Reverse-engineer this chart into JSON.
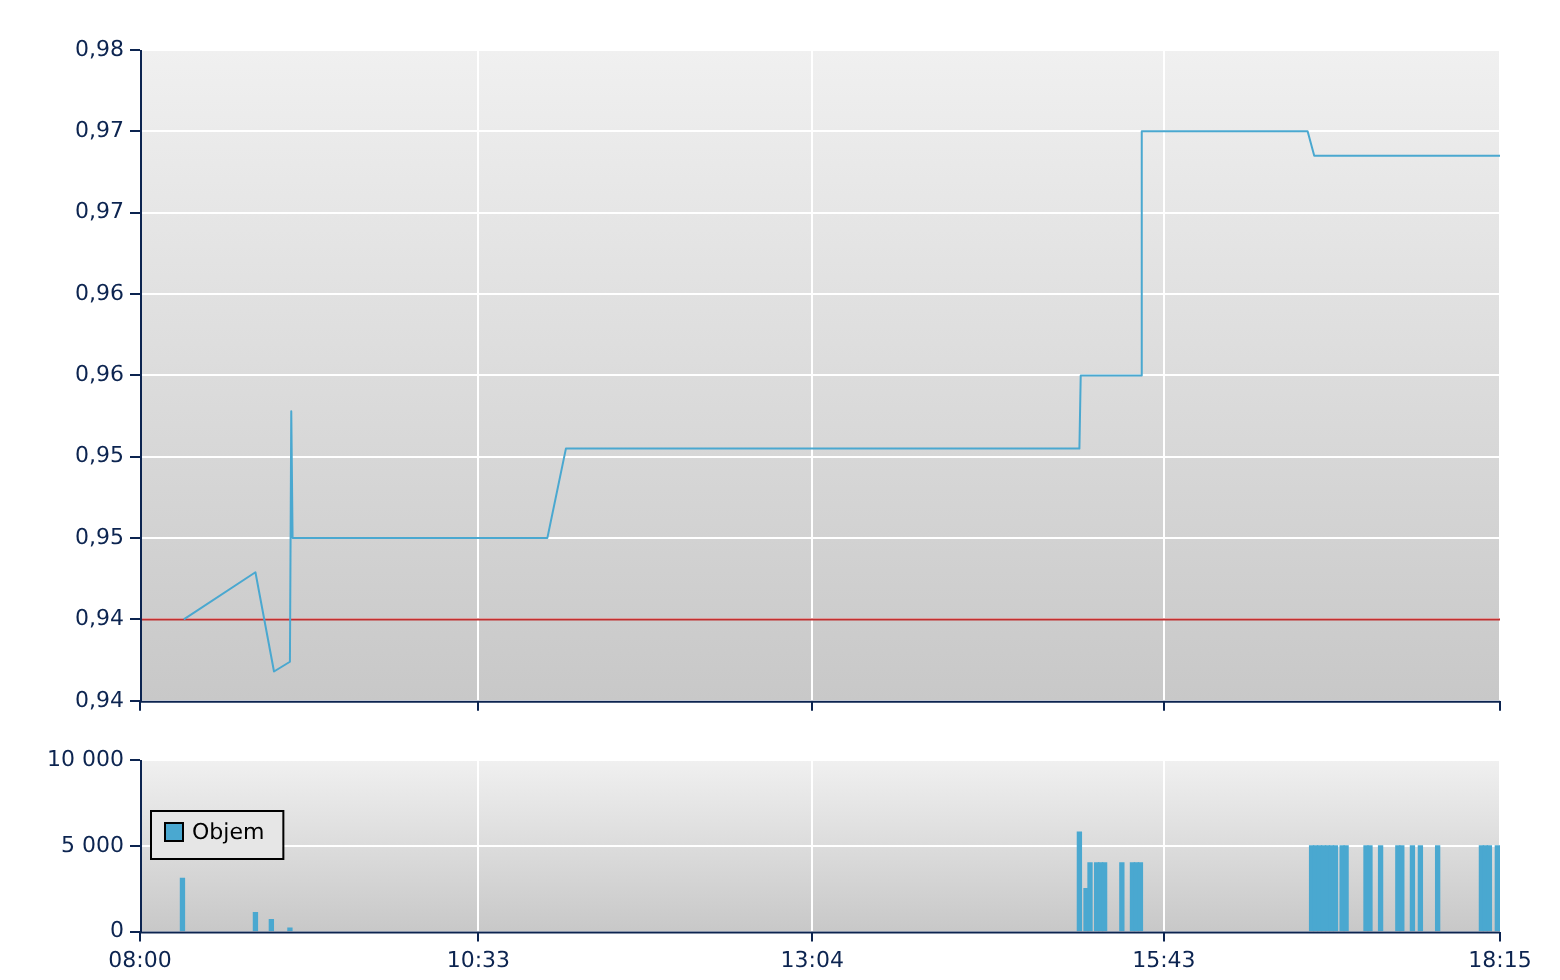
{
  "chart_data": [
    {
      "type": "line",
      "marker": "none",
      "grid": true,
      "tick_labels": "y",
      "x": [
        8.33,
        8.87,
        9.01,
        9.13,
        9.14,
        9.15,
        11.07,
        11.21,
        15.08,
        15.09,
        15.54,
        15.55,
        16.8,
        16.85,
        18.25
      ],
      "series": [
        {
          "color": "#4aa8d0",
          "values": [
            0.945,
            0.9479,
            0.9418,
            0.9424,
            0.9578,
            0.95,
            0.95,
            0.9555,
            0.9555,
            0.96,
            0.96,
            0.975,
            0.975,
            0.9735,
            0.9735
          ]
        }
      ],
      "xlim": [
        8,
        18.25
      ],
      "xticks": [
        {
          "value": 8,
          "label": null
        },
        {
          "value": 10.55,
          "label": null
        },
        {
          "value": 13.0667,
          "label": null
        },
        {
          "value": 15.7167,
          "label": null
        },
        {
          "value": 18.25,
          "label": null
        }
      ],
      "ylim": [
        0.94,
        0.98
      ],
      "yticks": [
        {
          "value": 0.94,
          "label": "0,94"
        },
        {
          "value": 0.945,
          "label": "0,94"
        },
        {
          "value": 0.95,
          "label": "0,95"
        },
        {
          "value": 0.955,
          "label": "0,95"
        },
        {
          "value": 0.96,
          "label": "0,96"
        },
        {
          "value": 0.965,
          "label": "0,96"
        },
        {
          "value": 0.97,
          "label": "0,97"
        },
        {
          "value": 0.975,
          "label": "0,97"
        },
        {
          "value": 0.98,
          "label": "0,98"
        }
      ],
      "ref_lines": [
        {
          "axis": "y",
          "value": 0.945,
          "color": "#c03030"
        }
      ]
    },
    {
      "type": "bar",
      "grid": true,
      "legend": "top left",
      "x": [
        8.32,
        8.87,
        8.99,
        9.13,
        15.08,
        15.13,
        15.16,
        15.21,
        15.24,
        15.27,
        15.4,
        15.48,
        15.51,
        15.54,
        16.83,
        16.86,
        16.89,
        16.92,
        16.95,
        16.98,
        17.01,
        17.06,
        17.09,
        17.24,
        17.27,
        17.35,
        17.48,
        17.51,
        17.59,
        17.65,
        17.78,
        18.11,
        18.14,
        18.17,
        18.23
      ],
      "series": [
        {
          "name": "Objem",
          "color": "#4aa8d0",
          "values": [
            3100,
            1100,
            700,
            200,
            5800,
            2500,
            4000,
            4000,
            4000,
            4000,
            4000,
            4000,
            4000,
            4000,
            5000,
            5000,
            5000,
            5000,
            5000,
            5000,
            5000,
            5000,
            5000,
            5000,
            5000,
            5000,
            5000,
            5000,
            5000,
            5000,
            5000,
            5000,
            5000,
            5000,
            5000
          ]
        }
      ],
      "xlim": [
        8,
        18.25
      ],
      "xticks": [
        {
          "value": 8,
          "label": "08:00"
        },
        {
          "value": 10.55,
          "label": "10:33"
        },
        {
          "value": 13.0667,
          "label": "13:04"
        },
        {
          "value": 15.7167,
          "label": "15:43"
        },
        {
          "value": 18.25,
          "label": "18:15"
        }
      ],
      "ylim": [
        0,
        10000
      ],
      "yticks": [
        {
          "value": 0,
          "label": "0"
        },
        {
          "value": 5000,
          "label": "5 000"
        },
        {
          "value": 10000,
          "label": "10 000"
        }
      ]
    }
  ]
}
